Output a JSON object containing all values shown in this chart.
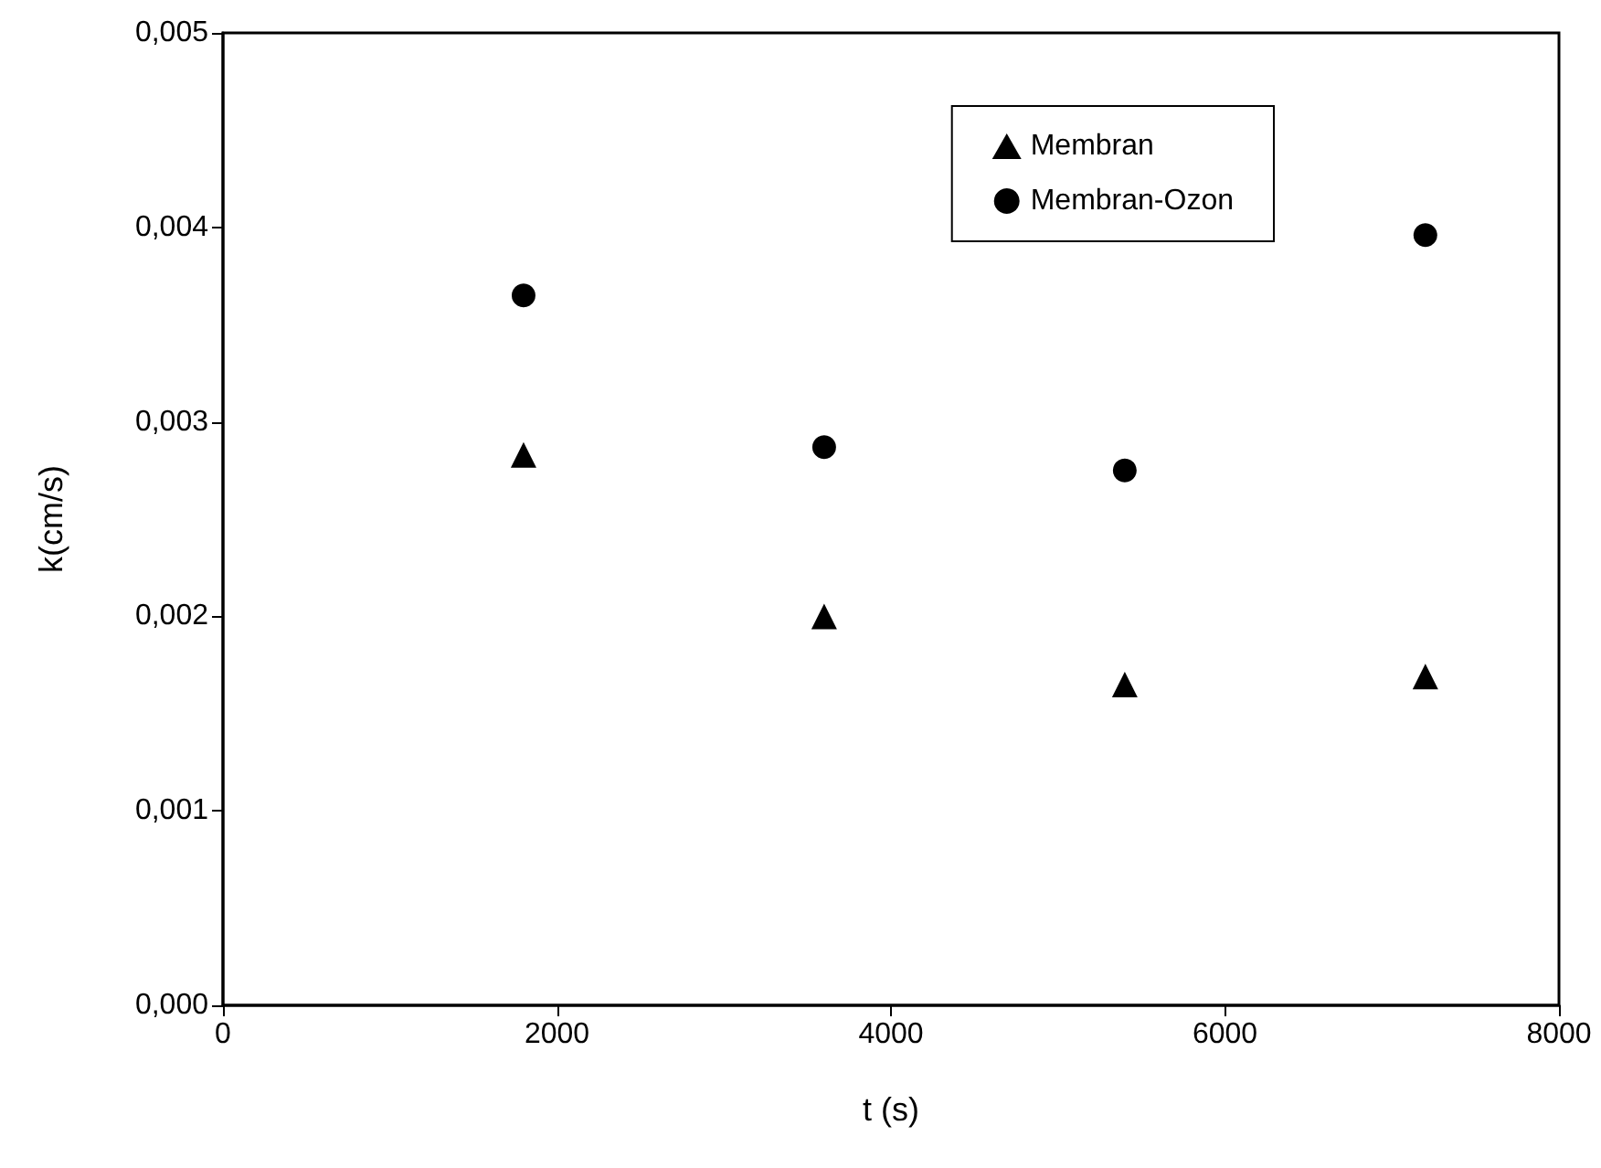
{
  "chart_data": {
    "type": "scatter",
    "xlabel": "t (s)",
    "ylabel": "k(cm/s)",
    "x": [
      1800,
      3600,
      5400,
      7200
    ],
    "series": [
      {
        "name": "Membran",
        "color": "#000000",
        "marker": "triangle",
        "values": [
          0.00283,
          0.002,
          0.00165,
          0.00169
        ]
      },
      {
        "name": "Membran-Ozon",
        "color": "#000000",
        "marker": "circle",
        "values": [
          0.00365,
          0.00287,
          0.00275,
          0.00396
        ]
      }
    ],
    "xlim": [
      0,
      8000
    ],
    "xticks": [
      0,
      2000,
      4000,
      6000,
      8000
    ],
    "ylim": [
      0,
      0.005
    ],
    "yticks": [
      {
        "value": 0,
        "label": "0,000"
      },
      {
        "value": 0.001,
        "label": "0,001"
      },
      {
        "value": 0.002,
        "label": "0,002"
      },
      {
        "value": 0.003,
        "label": "0,003"
      },
      {
        "value": 0.004,
        "label": "0,004"
      },
      {
        "value": 0.005,
        "label": "0,005"
      }
    ],
    "grid": false,
    "legend": "top right"
  }
}
